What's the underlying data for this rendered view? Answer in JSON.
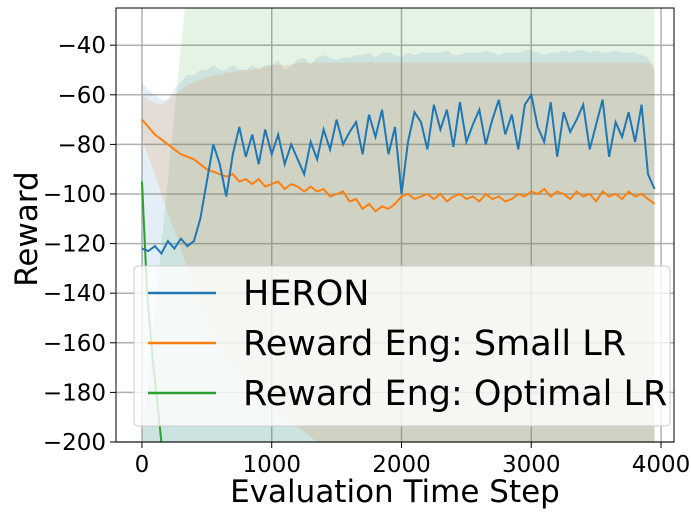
{
  "chart_data": {
    "type": "line",
    "title": "",
    "xlabel": "Evaluation Time Step",
    "ylabel": "Reward",
    "xlim": [
      -200,
      4100
    ],
    "ylim": [
      -200,
      -25
    ],
    "xticks": [
      0,
      1000,
      2000,
      3000,
      4000
    ],
    "xtick_labels": [
      "0",
      "1000",
      "2000",
      "3000",
      "4000"
    ],
    "yticks": [
      -200,
      -180,
      -160,
      -140,
      -120,
      -100,
      -80,
      -60,
      -40
    ],
    "ytick_labels": [
      "−200",
      "−180",
      "−160",
      "−140",
      "−120",
      "−100",
      "−80",
      "−60",
      "−40"
    ],
    "grid": true,
    "legend_position": "lower-right",
    "series": [
      {
        "name": "HERON",
        "color": "#1f77b4",
        "x": [
          0,
          50,
          100,
          150,
          200,
          250,
          300,
          350,
          400,
          450,
          500,
          550,
          600,
          650,
          700,
          750,
          800,
          850,
          900,
          950,
          1000,
          1050,
          1100,
          1150,
          1200,
          1250,
          1300,
          1350,
          1400,
          1450,
          1500,
          1550,
          1600,
          1650,
          1700,
          1750,
          1800,
          1850,
          1900,
          1950,
          2000,
          2050,
          2100,
          2150,
          2200,
          2250,
          2300,
          2350,
          2400,
          2450,
          2500,
          2550,
          2600,
          2650,
          2700,
          2750,
          2800,
          2850,
          2900,
          2950,
          3000,
          3050,
          3100,
          3150,
          3200,
          3250,
          3300,
          3350,
          3400,
          3450,
          3500,
          3550,
          3600,
          3650,
          3700,
          3750,
          3800,
          3850,
          3900,
          3950
        ],
        "values": [
          -122,
          -123,
          -121,
          -124,
          -119,
          -122,
          -118,
          -121,
          -119,
          -110,
          -95,
          -80,
          -88,
          -101,
          -84,
          -73,
          -85,
          -76,
          -88,
          -74,
          -84,
          -76,
          -88,
          -80,
          -86,
          -92,
          -79,
          -86,
          -74,
          -82,
          -70,
          -80,
          -75,
          -71,
          -84,
          -68,
          -77,
          -66,
          -84,
          -73,
          -100,
          -79,
          -67,
          -71,
          -82,
          -64,
          -74,
          -66,
          -81,
          -63,
          -79,
          -72,
          -66,
          -80,
          -70,
          -62,
          -76,
          -68,
          -82,
          -64,
          -60,
          -73,
          -79,
          -63,
          -85,
          -67,
          -75,
          -70,
          -64,
          -82,
          -72,
          -62,
          -85,
          -71,
          -77,
          -67,
          -79,
          -64,
          -92,
          -98
        ],
        "band_upper": [
          -55,
          -58,
          -60,
          -62,
          -62,
          -58,
          -55,
          -52,
          -52,
          -50,
          -50,
          -48,
          -50,
          -50,
          -48,
          -50,
          -50,
          -48,
          -50,
          -48,
          -48,
          -46,
          -50,
          -48,
          -46,
          -45,
          -48,
          -45,
          -44,
          -45,
          -46,
          -45,
          -45,
          -44,
          -44,
          -43,
          -45,
          -43,
          -43,
          -44,
          -45,
          -43,
          -44,
          -43,
          -43,
          -43,
          -43,
          -42,
          -44,
          -44,
          -43,
          -43,
          -43,
          -42,
          -43,
          -44,
          -43,
          -43,
          -43,
          -42,
          -42,
          -43,
          -44,
          -43,
          -43,
          -42,
          -43,
          -42,
          -42,
          -43,
          -42,
          -43,
          -43,
          -42,
          -43,
          -43,
          -43,
          -44,
          -45,
          -50
        ],
        "band_lower": [
          -200,
          -200,
          -200,
          -200,
          -200,
          -200,
          -200,
          -200,
          -200,
          -200,
          -200,
          -200,
          -200,
          -200,
          -200,
          -200,
          -200,
          -200,
          -200,
          -200,
          -200,
          -200,
          -200,
          -200,
          -200,
          -200,
          -200,
          -200,
          -200,
          -200,
          -200,
          -200,
          -200,
          -200,
          -200,
          -200,
          -200,
          -200,
          -200,
          -200,
          -200,
          -200,
          -200,
          -200,
          -200,
          -200,
          -200,
          -200,
          -200,
          -200,
          -200,
          -200,
          -200,
          -200,
          -200,
          -200,
          -200,
          -200,
          -200,
          -200,
          -200,
          -200,
          -200,
          -200,
          -200,
          -200,
          -200,
          -200,
          -200,
          -200,
          -200,
          -200,
          -200,
          -200,
          -200,
          -200,
          -200,
          -200,
          -200,
          -200
        ]
      },
      {
        "name": "Reward Eng: Small LR",
        "color": "#ff7f0e",
        "x": [
          0,
          50,
          100,
          150,
          200,
          250,
          300,
          350,
          400,
          450,
          500,
          550,
          600,
          650,
          700,
          750,
          800,
          850,
          900,
          950,
          1000,
          1050,
          1100,
          1150,
          1200,
          1250,
          1300,
          1350,
          1400,
          1450,
          1500,
          1550,
          1600,
          1650,
          1700,
          1750,
          1800,
          1850,
          1900,
          1950,
          2000,
          2050,
          2100,
          2150,
          2200,
          2250,
          2300,
          2350,
          2400,
          2450,
          2500,
          2550,
          2600,
          2650,
          2700,
          2750,
          2800,
          2850,
          2900,
          2950,
          3000,
          3050,
          3100,
          3150,
          3200,
          3250,
          3300,
          3350,
          3400,
          3450,
          3500,
          3550,
          3600,
          3650,
          3700,
          3750,
          3800,
          3850,
          3900,
          3950
        ],
        "values": [
          -70,
          -73,
          -76,
          -78,
          -80,
          -82,
          -84,
          -85,
          -86,
          -88,
          -90,
          -91,
          -92,
          -93,
          -92,
          -95,
          -94,
          -96,
          -94,
          -97,
          -96,
          -95,
          -98,
          -96,
          -97,
          -99,
          -97,
          -99,
          -98,
          -101,
          -100,
          -99,
          -103,
          -102,
          -106,
          -104,
          -107,
          -105,
          -106,
          -104,
          -101,
          -100,
          -102,
          -101,
          -100,
          -102,
          -100,
          -103,
          -101,
          -100,
          -102,
          -101,
          -103,
          -100,
          -102,
          -101,
          -103,
          -102,
          -100,
          -101,
          -99,
          -100,
          -98,
          -101,
          -99,
          -100,
          -102,
          -99,
          -101,
          -100,
          -103,
          -99,
          -101,
          -100,
          -102,
          -99,
          -101,
          -100,
          -102,
          -104
        ],
        "band_upper": [
          -60,
          -62,
          -63,
          -64,
          -62,
          -60,
          -58,
          -56,
          -55,
          -54,
          -53,
          -52,
          -52,
          -51,
          -51,
          -50,
          -50,
          -50,
          -49,
          -49,
          -48,
          -48,
          -48,
          -48,
          -47,
          -47,
          -47,
          -47,
          -47,
          -47,
          -47,
          -47,
          -47,
          -47,
          -47,
          -47,
          -47,
          -47,
          -47,
          -47,
          -47,
          -47,
          -47,
          -47,
          -47,
          -47,
          -47,
          -47,
          -47,
          -47,
          -47,
          -47,
          -47,
          -47,
          -47,
          -47,
          -47,
          -47,
          -47,
          -47,
          -47,
          -47,
          -47,
          -47,
          -47,
          -47,
          -47,
          -47,
          -47,
          -47,
          -47,
          -47,
          -47,
          -47,
          -47,
          -47,
          -47,
          -47,
          -47,
          -48
        ],
        "band_lower": [
          -78,
          -85,
          -92,
          -100,
          -108,
          -115,
          -122,
          -130,
          -138,
          -145,
          -150,
          -155,
          -160,
          -165,
          -168,
          -172,
          -175,
          -178,
          -180,
          -183,
          -185,
          -188,
          -190,
          -192,
          -194,
          -196,
          -198,
          -200,
          -200,
          -200,
          -200,
          -200,
          -200,
          -200,
          -200,
          -200,
          -200,
          -200,
          -200,
          -200,
          -200,
          -200,
          -200,
          -200,
          -200,
          -200,
          -200,
          -200,
          -200,
          -200,
          -200,
          -200,
          -200,
          -200,
          -200,
          -200,
          -200,
          -200,
          -200,
          -200,
          -200,
          -200,
          -200,
          -200,
          -200,
          -200,
          -200,
          -200,
          -200,
          -200,
          -200,
          -200,
          -200,
          -200,
          -200,
          -200,
          -200,
          -200,
          -200,
          -200
        ]
      },
      {
        "name": "Reward Eng: Optimal LR",
        "color": "#2ca02c",
        "x": [
          0,
          40,
          80,
          120,
          160
        ],
        "values": [
          -95,
          -140,
          -165,
          -185,
          -205
        ],
        "band": {
          "x_start": 330,
          "x_end": 3950,
          "upper": -25,
          "lower": -200,
          "ramp_from_x": 0
        }
      }
    ]
  }
}
